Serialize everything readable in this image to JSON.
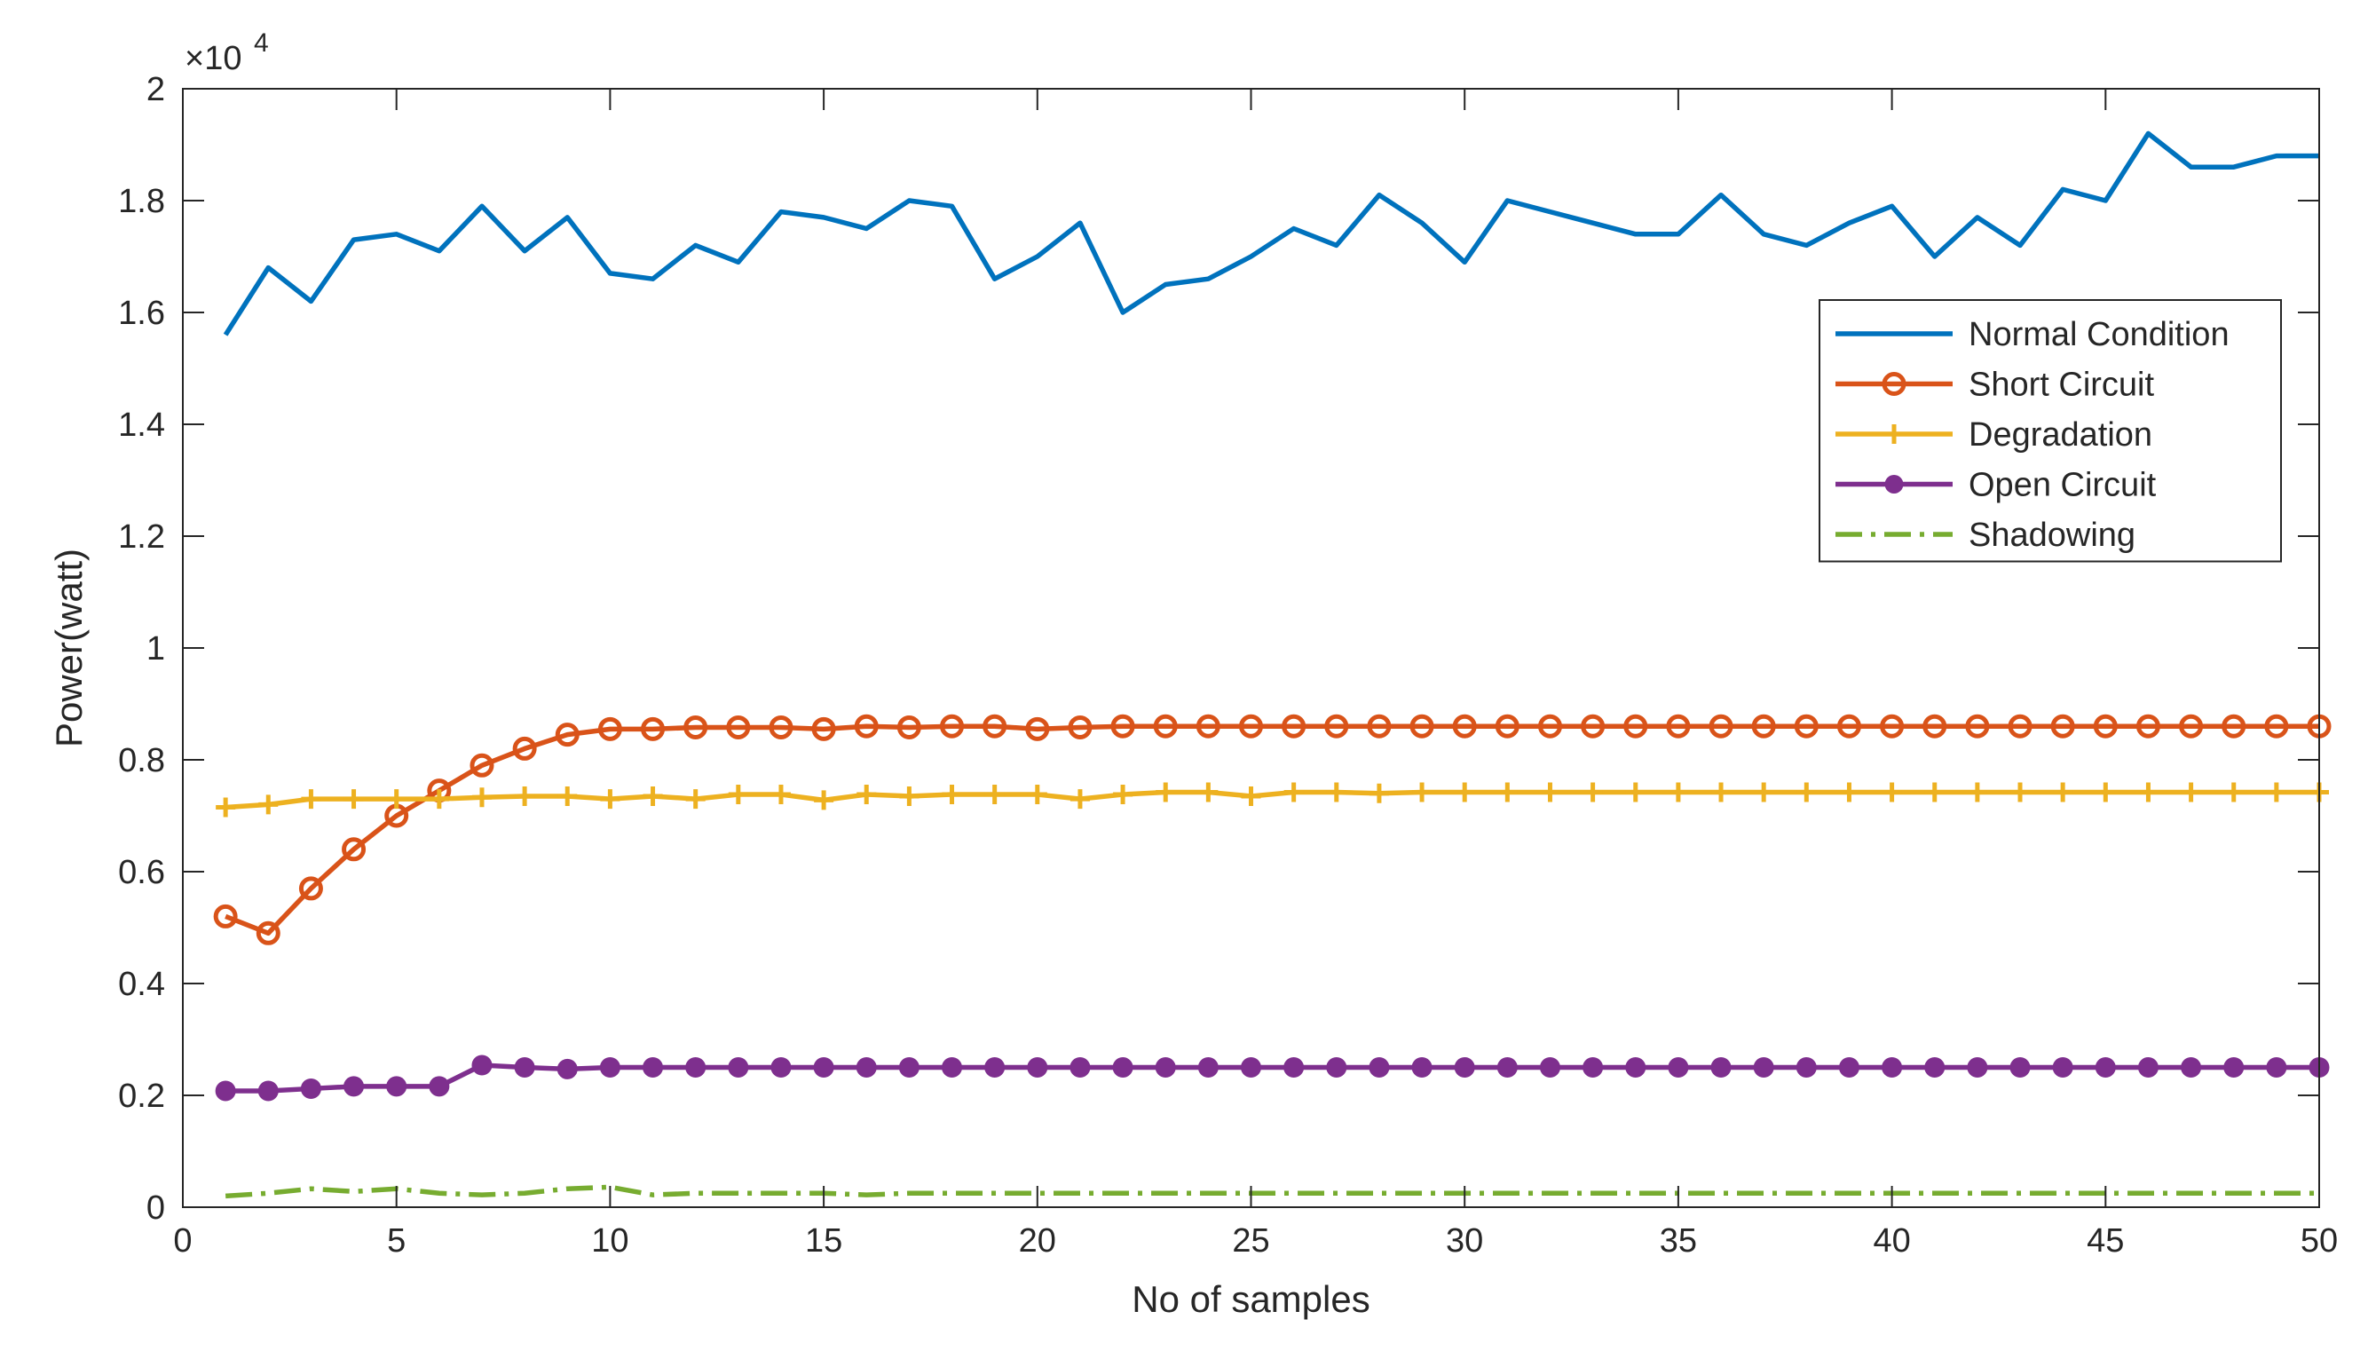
{
  "chart_data": {
    "type": "line",
    "title": "",
    "xlabel": "No of samples",
    "ylabel": "Power(watt)",
    "y_exponent_label": "×10",
    "y_exponent_power": "4",
    "xlim": [
      0,
      50
    ],
    "ylim": [
      0,
      2
    ],
    "xticks": [
      0,
      5,
      10,
      15,
      20,
      25,
      30,
      35,
      40,
      45,
      50
    ],
    "yticks": [
      0,
      0.2,
      0.4,
      0.6,
      0.8,
      1,
      1.2,
      1.4,
      1.6,
      1.8,
      2
    ],
    "ytick_labels": [
      "0",
      "0.2",
      "0.4",
      "0.6",
      "0.8",
      "1",
      "1.2",
      "1.4",
      "1.6",
      "1.8",
      "2"
    ],
    "grid": false,
    "legend_position": "top-right",
    "x": [
      1,
      2,
      3,
      4,
      5,
      6,
      7,
      8,
      9,
      10,
      11,
      12,
      13,
      14,
      15,
      16,
      17,
      18,
      19,
      20,
      21,
      22,
      23,
      24,
      25,
      26,
      27,
      28,
      29,
      30,
      31,
      32,
      33,
      34,
      35,
      36,
      37,
      38,
      39,
      40,
      41,
      42,
      43,
      44,
      45,
      46,
      47,
      48,
      49,
      50
    ],
    "series": [
      {
        "name": "Normal Condition",
        "color": "#0072BD",
        "marker": "none",
        "dash": "solid",
        "values": [
          1.56,
          1.68,
          1.62,
          1.73,
          1.74,
          1.71,
          1.79,
          1.71,
          1.77,
          1.67,
          1.66,
          1.72,
          1.69,
          1.78,
          1.77,
          1.75,
          1.8,
          1.79,
          1.66,
          1.7,
          1.76,
          1.6,
          1.65,
          1.66,
          1.7,
          1.75,
          1.72,
          1.81,
          1.76,
          1.69,
          1.8,
          1.78,
          1.76,
          1.74,
          1.74,
          1.81,
          1.74,
          1.72,
          1.76,
          1.79,
          1.7,
          1.77,
          1.72,
          1.82,
          1.8,
          1.92,
          1.86,
          1.86,
          1.88,
          1.88
        ]
      },
      {
        "name": "Short Circuit",
        "color": "#D95319",
        "marker": "circle",
        "dash": "solid",
        "values": [
          0.52,
          0.49,
          0.57,
          0.64,
          0.7,
          0.745,
          0.79,
          0.82,
          0.845,
          0.855,
          0.855,
          0.858,
          0.858,
          0.858,
          0.855,
          0.86,
          0.858,
          0.86,
          0.86,
          0.855,
          0.858,
          0.86,
          0.86,
          0.86,
          0.86,
          0.86,
          0.86,
          0.86,
          0.86,
          0.86,
          0.86,
          0.86,
          0.86,
          0.86,
          0.86,
          0.86,
          0.86,
          0.86,
          0.86,
          0.86,
          0.86,
          0.86,
          0.86,
          0.86,
          0.86,
          0.86,
          0.86,
          0.86,
          0.86,
          0.86
        ]
      },
      {
        "name": "Degradation",
        "color": "#EDB120",
        "marker": "plus",
        "dash": "solid",
        "values": [
          0.715,
          0.72,
          0.73,
          0.73,
          0.73,
          0.73,
          0.733,
          0.735,
          0.735,
          0.73,
          0.735,
          0.73,
          0.738,
          0.738,
          0.728,
          0.738,
          0.735,
          0.738,
          0.738,
          0.738,
          0.73,
          0.738,
          0.742,
          0.742,
          0.735,
          0.742,
          0.742,
          0.74,
          0.742,
          0.742,
          0.742,
          0.742,
          0.742,
          0.742,
          0.742,
          0.742,
          0.742,
          0.742,
          0.742,
          0.742,
          0.742,
          0.742,
          0.742,
          0.742,
          0.742,
          0.742,
          0.742,
          0.742,
          0.742,
          0.742
        ]
      },
      {
        "name": "Open Circuit",
        "color": "#7E2F8E",
        "marker": "filled-circle",
        "dash": "solid",
        "values": [
          0.208,
          0.208,
          0.212,
          0.216,
          0.216,
          0.216,
          0.254,
          0.25,
          0.247,
          0.25,
          0.25,
          0.25,
          0.25,
          0.25,
          0.25,
          0.25,
          0.25,
          0.25,
          0.25,
          0.25,
          0.25,
          0.25,
          0.25,
          0.25,
          0.25,
          0.25,
          0.25,
          0.25,
          0.25,
          0.25,
          0.25,
          0.25,
          0.25,
          0.25,
          0.25,
          0.25,
          0.25,
          0.25,
          0.25,
          0.25,
          0.25,
          0.25,
          0.25,
          0.25,
          0.25,
          0.25,
          0.25,
          0.25,
          0.25,
          0.25
        ]
      },
      {
        "name": "Shadowing",
        "color": "#77AC30",
        "marker": "none",
        "dash": "dashdot",
        "values": [
          0.02,
          0.025,
          0.033,
          0.028,
          0.033,
          0.025,
          0.022,
          0.025,
          0.033,
          0.036,
          0.022,
          0.025,
          0.025,
          0.025,
          0.025,
          0.022,
          0.025,
          0.025,
          0.025,
          0.025,
          0.025,
          0.025,
          0.025,
          0.025,
          0.025,
          0.025,
          0.025,
          0.025,
          0.025,
          0.025,
          0.025,
          0.025,
          0.025,
          0.025,
          0.025,
          0.025,
          0.025,
          0.025,
          0.025,
          0.025,
          0.025,
          0.025,
          0.025,
          0.025,
          0.025,
          0.025,
          0.025,
          0.025,
          0.025,
          0.025
        ]
      }
    ]
  }
}
